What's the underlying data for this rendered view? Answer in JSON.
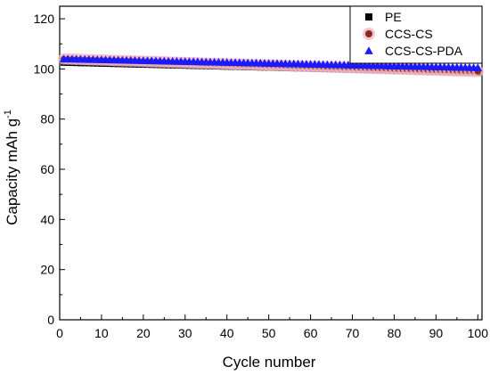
{
  "chart_data": {
    "type": "scatter",
    "title": "",
    "xlabel": "Cycle number",
    "ylabel_main": "Capacity mAh g",
    "ylabel_sup": "-1",
    "xlim": [
      0,
      101
    ],
    "ylim": [
      0,
      125
    ],
    "xticks": [
      0,
      10,
      20,
      30,
      40,
      50,
      60,
      70,
      80,
      90,
      100
    ],
    "yticks": [
      0,
      20,
      40,
      60,
      80,
      100,
      120
    ],
    "grid": false,
    "legend_position": "top-right",
    "series": [
      {
        "name": "PE",
        "marker": "square",
        "color": "#000000",
        "x_start": 1,
        "x_end": 100,
        "y_start": 102.5,
        "y_end": 98.5
      },
      {
        "name": "CCS-CS",
        "marker": "circle",
        "color": "#8b2a1c",
        "halo_color": "#f2b8c6",
        "x_start": 1,
        "x_end": 100,
        "y_start": 104.0,
        "y_end": 99.0
      },
      {
        "name": "CCS-CS-PDA",
        "marker": "triangle",
        "color": "#1a1aff",
        "x_start": 1,
        "x_end": 100,
        "y_start": 104.0,
        "y_end": 100.5
      }
    ]
  }
}
